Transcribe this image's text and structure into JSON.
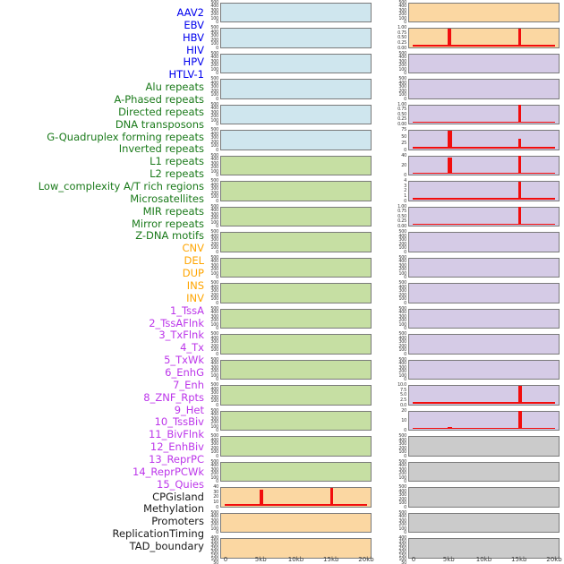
{
  "figure": {
    "description": "Multi-track genomic feature density plot, 44 tracks in two panel columns over a 0-20kb window",
    "xaxis_ticks": [
      "0",
      "5kb",
      "10kb",
      "15kb",
      "20kb"
    ],
    "xaxis_kb": [
      0,
      5,
      10,
      15,
      20
    ],
    "label_colors": {
      "virus": "#0000ee",
      "repeat": "#1a7a1a",
      "sv": "#ffa500",
      "chromatin": "#bc36ea",
      "annotation": "#1a1a1a"
    },
    "panel_fills": {
      "blue": "#cfe6ee",
      "green": "#c6dfa3",
      "orange": "#fbd7a2",
      "purple": "#d5cbe6",
      "gray": "#cbcbcb"
    },
    "spike_color": "#f20d0d",
    "ytick_presets": {
      "y500": [
        "500",
        "400",
        "300",
        "200",
        "100",
        "0"
      ],
      "y1": [
        "1.00",
        "0.75",
        "0.50",
        "0.25",
        "0.00"
      ],
      "y75": [
        "75",
        "50",
        "25",
        "0"
      ],
      "y40": [
        "40",
        "30",
        "20",
        "10",
        "0"
      ],
      "y40c": [
        "40",
        "20",
        "0"
      ],
      "y20": [
        "20",
        "10",
        "0"
      ],
      "y4": [
        "4",
        "3",
        "2",
        "1",
        "0"
      ],
      "y10": [
        "10.0",
        "7.5",
        "5.0",
        "2.5",
        "0.0"
      ],
      "dense": [
        "400",
        "350",
        "300",
        "250",
        "200",
        "150",
        "100",
        "50",
        "0"
      ]
    },
    "tracks": [
      {
        "label": "AAV2",
        "group": "virus"
      },
      {
        "label": "EBV",
        "group": "virus"
      },
      {
        "label": "HBV",
        "group": "virus"
      },
      {
        "label": "HIV",
        "group": "virus"
      },
      {
        "label": "HPV",
        "group": "virus"
      },
      {
        "label": "HTLV-1",
        "group": "virus"
      },
      {
        "label": "Alu repeats",
        "group": "repeat"
      },
      {
        "label": "A-Phased repeats",
        "group": "repeat"
      },
      {
        "label": "Directed repeats",
        "group": "repeat"
      },
      {
        "label": "DNA transposons",
        "group": "repeat"
      },
      {
        "label": "G-Quadruplex forming repeats",
        "group": "repeat"
      },
      {
        "label": "Inverted repeats",
        "group": "repeat"
      },
      {
        "label": "L1 repeats",
        "group": "repeat"
      },
      {
        "label": "L2 repeats",
        "group": "repeat"
      },
      {
        "label": "Low_complexity A/T rich regions",
        "group": "repeat"
      },
      {
        "label": "Microsatellites",
        "group": "repeat"
      },
      {
        "label": "MIR repeats",
        "group": "repeat"
      },
      {
        "label": "Mirror repeats",
        "group": "repeat"
      },
      {
        "label": "Z-DNA motifs",
        "group": "repeat"
      },
      {
        "label": "CNV",
        "group": "sv"
      },
      {
        "label": "DEL",
        "group": "sv"
      },
      {
        "label": "DUP",
        "group": "sv"
      },
      {
        "label": "INS",
        "group": "sv"
      },
      {
        "label": "INV",
        "group": "sv"
      },
      {
        "label": "1_TssA",
        "group": "chromatin"
      },
      {
        "label": "2_TssAFlnk",
        "group": "chromatin"
      },
      {
        "label": "3_TxFlnk",
        "group": "chromatin"
      },
      {
        "label": "4_Tx",
        "group": "chromatin"
      },
      {
        "label": "5_TxWk",
        "group": "chromatin"
      },
      {
        "label": "6_EnhG",
        "group": "chromatin"
      },
      {
        "label": "7_Enh",
        "group": "chromatin"
      },
      {
        "label": "8_ZNF_Rpts",
        "group": "chromatin"
      },
      {
        "label": "9_Het",
        "group": "chromatin"
      },
      {
        "label": "10_TssBiv",
        "group": "chromatin"
      },
      {
        "label": "11_BivFlnk",
        "group": "chromatin"
      },
      {
        "label": "12_EnhBiv",
        "group": "chromatin"
      },
      {
        "label": "13_ReprPC",
        "group": "chromatin"
      },
      {
        "label": "14_ReprPCWk",
        "group": "chromatin"
      },
      {
        "label": "15_Quies",
        "group": "chromatin"
      },
      {
        "label": "CPGisland",
        "group": "annotation"
      },
      {
        "label": "Methylation",
        "group": "annotation"
      },
      {
        "label": "Promoters",
        "group": "annotation"
      },
      {
        "label": "ReplicationTiming",
        "group": "annotation"
      },
      {
        "label": "TAD_boundary",
        "group": "annotation"
      }
    ],
    "left_column": {
      "panels": [
        {
          "track": "AAV2",
          "fill": "blue",
          "yticks": "y500",
          "spikes": [],
          "baseline": false
        },
        {
          "track": "EBV",
          "fill": "blue",
          "yticks": "y500",
          "spikes": [],
          "baseline": false
        },
        {
          "track": "HBV",
          "fill": "blue",
          "yticks": "y500",
          "spikes": [],
          "baseline": false
        },
        {
          "track": "HIV",
          "fill": "blue",
          "yticks": "y500",
          "spikes": [],
          "baseline": false
        },
        {
          "track": "HPV",
          "fill": "blue",
          "yticks": "y500",
          "spikes": [],
          "baseline": false
        },
        {
          "track": "HTLV-1",
          "fill": "blue",
          "yticks": "y500",
          "spikes": [],
          "baseline": false
        },
        {
          "track": "Alu repeats",
          "fill": "green",
          "yticks": "y500",
          "spikes": [],
          "baseline": false
        },
        {
          "track": "A-Phased repeats",
          "fill": "green",
          "yticks": "y500",
          "spikes": [],
          "baseline": false
        },
        {
          "track": "Directed repeats",
          "fill": "green",
          "yticks": "y500",
          "spikes": [],
          "baseline": false
        },
        {
          "track": "DNA transposons",
          "fill": "green",
          "yticks": "y500",
          "spikes": [],
          "baseline": false
        },
        {
          "track": "G-Quadruplex forming repeats",
          "fill": "green",
          "yticks": "y500",
          "spikes": [],
          "baseline": false
        },
        {
          "track": "Inverted repeats",
          "fill": "green",
          "yticks": "y500",
          "spikes": [],
          "baseline": false
        },
        {
          "track": "L1 repeats",
          "fill": "green",
          "yticks": "y500",
          "spikes": [],
          "baseline": false
        },
        {
          "track": "L2 repeats",
          "fill": "green",
          "yticks": "y500",
          "spikes": [],
          "baseline": false
        },
        {
          "track": "Low_complexity A/T rich regions",
          "fill": "green",
          "yticks": "y500",
          "spikes": [],
          "baseline": false
        },
        {
          "track": "Microsatellites",
          "fill": "green",
          "yticks": "y500",
          "spikes": [],
          "baseline": false
        },
        {
          "track": "MIR repeats",
          "fill": "green",
          "yticks": "y500",
          "spikes": [],
          "baseline": false
        },
        {
          "track": "Mirror repeats",
          "fill": "green",
          "yticks": "y500",
          "spikes": [],
          "baseline": false
        },
        {
          "track": "Z-DNA motifs",
          "fill": "green",
          "yticks": "y500",
          "spikes": [],
          "baseline": false
        },
        {
          "track": "CNV",
          "fill": "orange",
          "yticks": "y40",
          "spikes": [
            {
              "kb": 5,
              "h": 0.88,
              "w": 4
            },
            {
              "kb": 15,
              "h": 1.0,
              "w": 3
            }
          ],
          "baseline": true
        },
        {
          "track": "DEL",
          "fill": "orange",
          "yticks": "y500",
          "spikes": [],
          "baseline": false
        },
        {
          "track": "DUP",
          "fill": "orange",
          "yticks": "dense",
          "spikes": [],
          "baseline": false
        }
      ]
    },
    "right_column": {
      "panels": [
        {
          "track": "INS",
          "fill": "orange",
          "yticks": "y500",
          "spikes": [],
          "baseline": false
        },
        {
          "track": "INV",
          "fill": "orange",
          "yticks": "y1",
          "spikes": [
            {
              "kb": 5,
              "h": 1.0,
              "w": 4
            },
            {
              "kb": 15,
              "h": 1.0,
              "w": 3
            }
          ],
          "baseline": true
        },
        {
          "track": "1_TssA",
          "fill": "purple",
          "yticks": "y500",
          "spikes": [],
          "baseline": false
        },
        {
          "track": "2_TssAFlnk",
          "fill": "purple",
          "yticks": "y500",
          "spikes": [],
          "baseline": false
        },
        {
          "track": "3_TxFlnk",
          "fill": "purple",
          "yticks": "y1",
          "spikes": [
            {
              "kb": 15,
              "h": 1.0,
              "w": 3
            }
          ],
          "baseline": true
        },
        {
          "track": "4_Tx",
          "fill": "purple",
          "yticks": "y75",
          "spikes": [
            {
              "kb": 5,
              "h": 1.0,
              "w": 5
            },
            {
              "kb": 15,
              "h": 0.55,
              "w": 3
            }
          ],
          "baseline": true
        },
        {
          "track": "5_TxWk",
          "fill": "purple",
          "yticks": "y40c",
          "spikes": [
            {
              "kb": 5,
              "h": 0.9,
              "w": 5
            },
            {
              "kb": 15,
              "h": 1.0,
              "w": 3
            }
          ],
          "baseline": true
        },
        {
          "track": "6_EnhG",
          "fill": "purple",
          "yticks": "y4",
          "spikes": [
            {
              "kb": 15,
              "h": 1.0,
              "w": 3
            }
          ],
          "baseline": true
        },
        {
          "track": "7_Enh",
          "fill": "purple",
          "yticks": "y1",
          "spikes": [
            {
              "kb": 15,
              "h": 1.0,
              "w": 3
            }
          ],
          "baseline": true
        },
        {
          "track": "8_ZNF_Rpts",
          "fill": "purple",
          "yticks": "y500",
          "spikes": [],
          "baseline": false
        },
        {
          "track": "9_Het",
          "fill": "purple",
          "yticks": "y500",
          "spikes": [],
          "baseline": false
        },
        {
          "track": "10_TssBiv",
          "fill": "purple",
          "yticks": "y500",
          "spikes": [],
          "baseline": false
        },
        {
          "track": "11_BivFlnk",
          "fill": "purple",
          "yticks": "y500",
          "spikes": [],
          "baseline": false
        },
        {
          "track": "12_EnhBiv",
          "fill": "purple",
          "yticks": "y500",
          "spikes": [],
          "baseline": false
        },
        {
          "track": "13_ReprPC",
          "fill": "purple",
          "yticks": "y500",
          "spikes": [],
          "baseline": false
        },
        {
          "track": "14_ReprPCWk",
          "fill": "purple",
          "yticks": "y10",
          "spikes": [
            {
              "kb": 15,
              "h": 1.0,
              "w": 4
            }
          ],
          "baseline": true
        },
        {
          "track": "15_Quies",
          "fill": "purple",
          "yticks": "y20",
          "spikes": [
            {
              "kb": 5,
              "h": 0.12,
              "w": 5
            },
            {
              "kb": 15,
              "h": 1.0,
              "w": 4
            }
          ],
          "baseline": true
        },
        {
          "track": "CPGisland",
          "fill": "gray",
          "yticks": "y500",
          "spikes": [],
          "baseline": false
        },
        {
          "track": "Methylation",
          "fill": "gray",
          "yticks": "y500",
          "spikes": [],
          "baseline": false
        },
        {
          "track": "Promoters",
          "fill": "gray",
          "yticks": "y500",
          "spikes": [],
          "baseline": false
        },
        {
          "track": "ReplicationTiming",
          "fill": "gray",
          "yticks": "y500",
          "spikes": [],
          "baseline": false
        },
        {
          "track": "TAD_boundary",
          "fill": "gray",
          "yticks": "dense",
          "spikes": [],
          "baseline": false
        }
      ]
    }
  },
  "chart_data": {
    "type": "bar",
    "x_unit": "kb",
    "x_range": [
      0,
      20
    ],
    "x_ticks": [
      "0",
      "5kb",
      "10kb",
      "15kb",
      "20kb"
    ],
    "grid": false,
    "legend": "none",
    "tracks_with_signal": [
      {
        "track": "CNV",
        "ylim": [
          0,
          40
        ],
        "points": [
          {
            "x_kb": 5,
            "y": 36
          },
          {
            "x_kb": 15,
            "y": 40
          }
        ]
      },
      {
        "track": "INV",
        "ylim": [
          0,
          1
        ],
        "points": [
          {
            "x_kb": 5,
            "y": 1.0
          },
          {
            "x_kb": 15,
            "y": 1.0
          }
        ]
      },
      {
        "track": "3_TxFlnk",
        "ylim": [
          0,
          1
        ],
        "points": [
          {
            "x_kb": 15,
            "y": 1.0
          }
        ]
      },
      {
        "track": "4_Tx",
        "ylim": [
          0,
          75
        ],
        "points": [
          {
            "x_kb": 5,
            "y": 75
          },
          {
            "x_kb": 15,
            "y": 42
          }
        ]
      },
      {
        "track": "5_TxWk",
        "ylim": [
          0,
          40
        ],
        "points": [
          {
            "x_kb": 5,
            "y": 36
          },
          {
            "x_kb": 15,
            "y": 40
          }
        ]
      },
      {
        "track": "6_EnhG",
        "ylim": [
          0,
          4
        ],
        "points": [
          {
            "x_kb": 15,
            "y": 4
          }
        ]
      },
      {
        "track": "7_Enh",
        "ylim": [
          0,
          1
        ],
        "points": [
          {
            "x_kb": 15,
            "y": 1.0
          }
        ]
      },
      {
        "track": "14_ReprPCWk",
        "ylim": [
          0,
          10
        ],
        "points": [
          {
            "x_kb": 15,
            "y": 10
          }
        ]
      },
      {
        "track": "15_Quies",
        "ylim": [
          0,
          20
        ],
        "points": [
          {
            "x_kb": 5,
            "y": 2
          },
          {
            "x_kb": 15,
            "y": 20
          }
        ]
      }
    ],
    "all_other_tracks": "flat baseline, no visible signal"
  }
}
